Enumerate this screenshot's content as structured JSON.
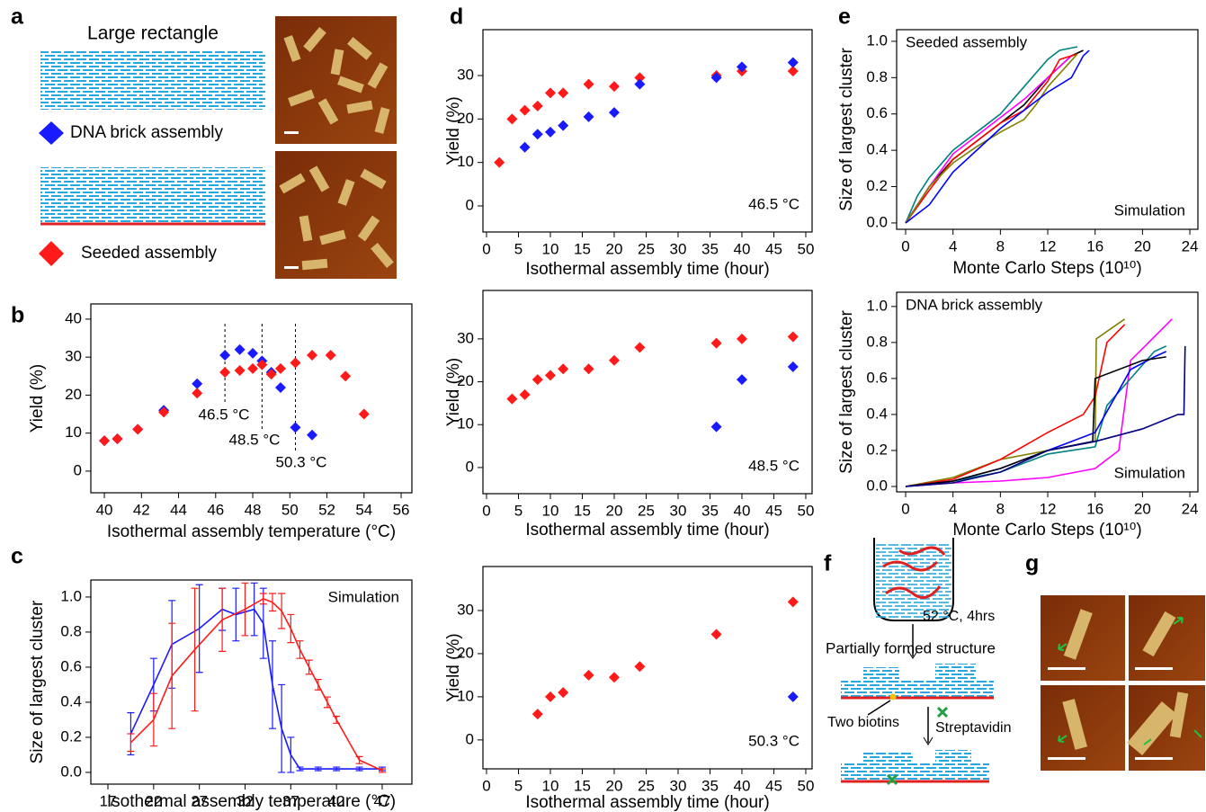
{
  "figure": {
    "panel_labels": [
      "a",
      "b",
      "c",
      "d",
      "e",
      "f",
      "g"
    ],
    "a": {
      "title": "Large rectangle"
    },
    "f": {
      "condition": "52 °C, 4hrs",
      "intermediate": "Partially formed structure",
      "biotin": "Two biotins",
      "streptavidin": "Streptavidin"
    }
  },
  "chart_data": [
    {
      "type": "scatter",
      "x_label": "Isothermal assembly temperature (°C)",
      "y_label": "Yield (%)",
      "xlim": [
        39.27,
        56.58
      ],
      "ylim": [
        -5.7,
        44
      ],
      "xticks": [
        40,
        42,
        44,
        46,
        48,
        50,
        52,
        54,
        56
      ],
      "yticks": [
        0,
        10,
        20,
        30,
        40
      ],
      "series": [
        {
          "name": "DNA brick assembly",
          "color": "#1a1aff",
          "x": [
            40,
            40.7,
            41.8,
            43.2,
            45,
            46.5,
            47.3,
            48,
            48.5,
            49,
            49.5,
            50.3,
            51.2
          ],
          "values": [
            8,
            8.5,
            11,
            16,
            23,
            30.5,
            32,
            31,
            29,
            26,
            22,
            11.5,
            9.5
          ]
        },
        {
          "name": "Seeded assembly",
          "color": "#ff1a1a",
          "x": [
            40,
            40.7,
            41.8,
            43.2,
            45,
            46.5,
            47.3,
            48,
            48.5,
            49,
            49.5,
            50.3,
            51.2,
            52.2,
            53,
            54
          ],
          "values": [
            8,
            8.5,
            11,
            15.5,
            20.5,
            26,
            26.5,
            27,
            28,
            25.5,
            27,
            28.5,
            30.5,
            30.5,
            25,
            15
          ]
        }
      ],
      "annotations": [
        {
          "text": "46.5 °C",
          "x": 46.5
        },
        {
          "text": "48.5 °C",
          "x": 48.5
        },
        {
          "text": "50.3 °C",
          "x": 50.3
        }
      ]
    },
    {
      "type": "line",
      "x_label": "Isothermal assembly temperature (°C)",
      "y_label": "Size of largest cluster",
      "note": "Simulation",
      "xlim": [
        15.13,
        50.25
      ],
      "ylim": [
        -0.067,
        1.097
      ],
      "xticks": [
        17,
        22,
        27,
        32,
        37,
        42,
        47
      ],
      "yticks": [
        {
          "value": 0,
          "label": "0.0"
        },
        {
          "value": 0.2,
          "label": "0.2"
        },
        {
          "value": 0.4,
          "label": "0.4"
        },
        {
          "value": 0.6,
          "label": "0.6"
        },
        {
          "value": 0.8,
          "label": "0.8"
        },
        {
          "value": 1,
          "label": "1.0"
        }
      ],
      "series": [
        {
          "color": "#1a1aff",
          "x": [
            19.5,
            22,
            24,
            27,
            29.5,
            31,
            33,
            34,
            35,
            36,
            37,
            38,
            40,
            42,
            44.5,
            47
          ],
          "values": [
            0.22,
            0.5,
            0.73,
            0.82,
            0.93,
            0.9,
            0.93,
            0.85,
            0.5,
            0.25,
            0.1,
            0.02,
            0.02,
            0.02,
            0.02,
            0.02
          ],
          "errors": [
            0.12,
            0.15,
            0.25,
            0.25,
            0.12,
            0.15,
            0.15,
            0.2,
            0.25,
            0.25,
            0.1,
            0.01,
            0.01,
            0.01,
            0.01,
            0.01
          ]
        },
        {
          "color": "#ff1a1a",
          "x": [
            19.5,
            22,
            24,
            26.5,
            29.5,
            32,
            34,
            35,
            36,
            37,
            38,
            39,
            40,
            41,
            42,
            44.5,
            47
          ],
          "values": [
            0.17,
            0.3,
            0.55,
            0.7,
            0.87,
            0.93,
            0.99,
            0.97,
            0.92,
            0.82,
            0.7,
            0.6,
            0.5,
            0.4,
            0.3,
            0.07,
            0.01
          ],
          "errors": [
            0.05,
            0.15,
            0.3,
            0.35,
            0.18,
            0.15,
            0.03,
            0.05,
            0.1,
            0.08,
            0.05,
            0.04,
            0.03,
            0.03,
            0.02,
            0.02,
            0.01
          ]
        }
      ]
    },
    {
      "type": "scatter",
      "x_label": "Isothermal assembly time (hour)",
      "y_label": "Yield (%)",
      "note": "46.5 °C",
      "xlim": [
        -0.56,
        50.99
      ],
      "ylim": [
        -6.0,
        40.55
      ],
      "xticks": [
        0,
        5,
        10,
        15,
        20,
        25,
        30,
        35,
        40,
        45,
        50
      ],
      "yticks": [
        0,
        10,
        20,
        30
      ],
      "series": [
        {
          "color": "#ff1a1a",
          "x": [
            2,
            4,
            6,
            8,
            10,
            12,
            16,
            20,
            24,
            36,
            40,
            48
          ],
          "values": [
            10,
            20,
            22,
            23,
            26,
            26,
            28,
            27.5,
            29.5,
            30,
            31,
            31
          ]
        },
        {
          "color": "#1a1aff",
          "x": [
            6,
            8,
            10,
            12,
            16,
            20,
            24,
            36,
            40,
            48
          ],
          "values": [
            13.5,
            16.5,
            17,
            18.5,
            20.5,
            21.5,
            28,
            29.5,
            32,
            33
          ]
        }
      ]
    },
    {
      "type": "scatter",
      "x_label": "Isothermal assembly time (hour)",
      "y_label": "Yield (%)",
      "note": "48.5 °C",
      "xlim": [
        -0.56,
        50.99
      ],
      "ylim": [
        -6.1,
        41.3
      ],
      "xticks": [
        0,
        5,
        10,
        15,
        20,
        25,
        30,
        35,
        40,
        45,
        50
      ],
      "yticks": [
        0,
        10,
        20,
        30
      ],
      "series": [
        {
          "color": "#ff1a1a",
          "x": [
            4,
            6,
            8,
            10,
            12,
            16,
            20,
            24,
            36,
            40,
            48
          ],
          "values": [
            16,
            17,
            20.5,
            21.5,
            23,
            23,
            25,
            28,
            29,
            30,
            30.5
          ]
        },
        {
          "color": "#1a1aff",
          "x": [
            36,
            40,
            48
          ],
          "values": [
            9.5,
            20.5,
            23.5
          ]
        }
      ]
    },
    {
      "type": "scatter",
      "x_label": "Isothermal assembly time (hour)",
      "y_label": "Yield (%)",
      "note": "50.3 °C",
      "xlim": [
        -0.56,
        50.99
      ],
      "ylim": [
        -6.7,
        40.2
      ],
      "xticks": [
        0,
        5,
        10,
        15,
        20,
        25,
        30,
        35,
        40,
        45,
        50
      ],
      "yticks": [
        0,
        10,
        20,
        30
      ],
      "series": [
        {
          "color": "#ff1a1a",
          "x": [
            8,
            10,
            12,
            16,
            20,
            24,
            36,
            48
          ],
          "values": [
            6,
            10,
            11,
            15,
            14.5,
            17,
            24.5,
            32
          ]
        },
        {
          "color": "#1a1aff",
          "x": [
            48
          ],
          "values": [
            10
          ]
        }
      ]
    },
    {
      "type": "line",
      "title": "Seeded assembly",
      "note": "Simulation",
      "x_label": "Monte Carlo Steps (10¹⁰)",
      "y_label": "Size of largest cluster",
      "xlim": [
        -0.76,
        24.68
      ],
      "ylim": [
        -0.035,
        1.064
      ],
      "xticks": [
        0,
        4,
        8,
        12,
        16,
        20,
        24
      ],
      "yticks": [
        {
          "value": 0,
          "label": "0.0"
        },
        {
          "value": 0.2,
          "label": "0.2"
        },
        {
          "value": 0.4,
          "label": "0.4"
        },
        {
          "value": 0.6,
          "label": "0.6"
        },
        {
          "value": 0.8,
          "label": "0.8"
        },
        {
          "value": 1,
          "label": "1.0"
        }
      ],
      "series": [
        {
          "color": "#008080",
          "x": [
            0,
            1,
            2,
            4,
            6,
            8,
            10,
            12,
            13,
            14.5
          ],
          "values": [
            0,
            0.15,
            0.25,
            0.4,
            0.5,
            0.6,
            0.75,
            0.9,
            0.95,
            0.97
          ]
        },
        {
          "color": "#000000",
          "x": [
            0,
            2,
            4,
            6,
            8,
            10,
            12,
            14,
            15
          ],
          "values": [
            0,
            0.2,
            0.35,
            0.45,
            0.55,
            0.65,
            0.8,
            0.92,
            0.95
          ]
        },
        {
          "color": "#ff00ff",
          "x": [
            0,
            2,
            4,
            6,
            8,
            10,
            12,
            14
          ],
          "values": [
            0,
            0.2,
            0.38,
            0.48,
            0.58,
            0.68,
            0.8,
            0.92
          ]
        },
        {
          "color": "#ff0000",
          "x": [
            0,
            2,
            4,
            6,
            8,
            10,
            12,
            13,
            14.5
          ],
          "values": [
            0,
            0.18,
            0.35,
            0.45,
            0.55,
            0.62,
            0.78,
            0.9,
            0.93
          ]
        },
        {
          "color": "#808000",
          "x": [
            0,
            2,
            4,
            6,
            8,
            10,
            11,
            12,
            14.5
          ],
          "values": [
            0,
            0.2,
            0.33,
            0.42,
            0.5,
            0.57,
            0.65,
            0.75,
            0.93
          ]
        },
        {
          "color": "#0000ff",
          "x": [
            0,
            2,
            4,
            6,
            8,
            10,
            12,
            14,
            15,
            15.5
          ],
          "values": [
            0,
            0.1,
            0.28,
            0.4,
            0.52,
            0.62,
            0.72,
            0.8,
            0.92,
            0.95
          ]
        }
      ]
    },
    {
      "type": "line",
      "title": "DNA brick assembly",
      "note": "Simulation",
      "x_label": "Monte Carlo Steps (10¹⁰)",
      "y_label": "Size of largest cluster",
      "xlim": [
        -0.76,
        24.68
      ],
      "ylim": [
        -0.03,
        1.079
      ],
      "xticks": [
        0,
        4,
        8,
        12,
        16,
        20,
        24
      ],
      "yticks": [
        {
          "value": 0,
          "label": "0.0"
        },
        {
          "value": 0.2,
          "label": "0.2"
        },
        {
          "value": 0.4,
          "label": "0.4"
        },
        {
          "value": 0.6,
          "label": "0.6"
        },
        {
          "value": 0.8,
          "label": "0.8"
        },
        {
          "value": 1,
          "label": "1.0"
        }
      ],
      "series": [
        {
          "color": "#808000",
          "x": [
            0,
            4,
            8,
            12,
            16,
            16.1,
            18.5
          ],
          "values": [
            0,
            0.05,
            0.15,
            0.2,
            0.25,
            0.82,
            0.93
          ]
        },
        {
          "color": "#ff0000",
          "x": [
            0,
            4,
            8,
            12,
            15,
            16,
            17,
            18.5
          ],
          "values": [
            0,
            0.04,
            0.15,
            0.3,
            0.4,
            0.5,
            0.8,
            0.9
          ]
        },
        {
          "color": "#ff00ff",
          "x": [
            0,
            4,
            8,
            12,
            16,
            18,
            19,
            22.5
          ],
          "values": [
            0,
            0.02,
            0.03,
            0.05,
            0.1,
            0.2,
            0.7,
            0.93
          ]
        },
        {
          "color": "#008080",
          "x": [
            0,
            4,
            8,
            12,
            16,
            17,
            19,
            21,
            22
          ],
          "values": [
            0,
            0.03,
            0.08,
            0.18,
            0.22,
            0.45,
            0.6,
            0.75,
            0.78
          ]
        },
        {
          "color": "#0000ff",
          "x": [
            0,
            4,
            8,
            12,
            16,
            19,
            21,
            22
          ],
          "values": [
            0,
            0.03,
            0.1,
            0.2,
            0.3,
            0.65,
            0.72,
            0.75
          ]
        },
        {
          "color": "#000000",
          "x": [
            0,
            4,
            8,
            12,
            15.8,
            16,
            20,
            22
          ],
          "values": [
            0,
            0.03,
            0.1,
            0.2,
            0.25,
            0.6,
            0.7,
            0.72
          ]
        },
        {
          "color": "#000080",
          "x": [
            0,
            4,
            8,
            12,
            16,
            20,
            23,
            23.5,
            23.6
          ],
          "values": [
            0,
            0.02,
            0.08,
            0.2,
            0.25,
            0.32,
            0.4,
            0.4,
            0.78
          ]
        }
      ]
    }
  ]
}
